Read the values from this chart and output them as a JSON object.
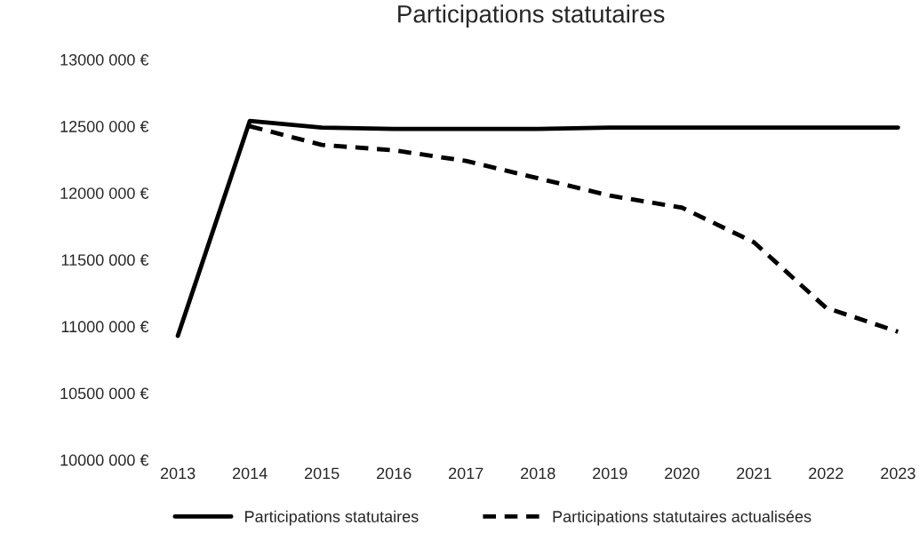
{
  "chart_data": {
    "type": "line",
    "title": "Participations statutaires",
    "categories": [
      "2013",
      "2014",
      "2015",
      "2016",
      "2017",
      "2018",
      "2019",
      "2020",
      "2021",
      "2022",
      "2023"
    ],
    "series": [
      {
        "name": "Participations statutaires",
        "color": "#000000",
        "line_style": "solid",
        "values": [
          10930000,
          12540000,
          12490000,
          12480000,
          12480000,
          12480000,
          12490000,
          12490000,
          12490000,
          12490000,
          12490000
        ]
      },
      {
        "name": "Participations statutaires actualisées",
        "color": "#000000",
        "line_style": "dashed",
        "values": [
          null,
          12500000,
          12360000,
          12320000,
          12240000,
          12110000,
          11980000,
          11890000,
          11630000,
          11140000,
          10960000
        ]
      }
    ],
    "ylim": [
      10000000,
      13000000
    ],
    "yticks": [
      {
        "value": 10000000,
        "label": "10000 000 €"
      },
      {
        "value": 10500000,
        "label": "10500 000 €"
      },
      {
        "value": 11000000,
        "label": "11000 000 €"
      },
      {
        "value": 11500000,
        "label": "11500 000 €"
      },
      {
        "value": 12000000,
        "label": "12000 000 €"
      },
      {
        "value": 12500000,
        "label": "12500 000 €"
      },
      {
        "value": 13000000,
        "label": "13000 000 €"
      }
    ],
    "grid": false,
    "legend": "bottom",
    "marker": "none"
  }
}
